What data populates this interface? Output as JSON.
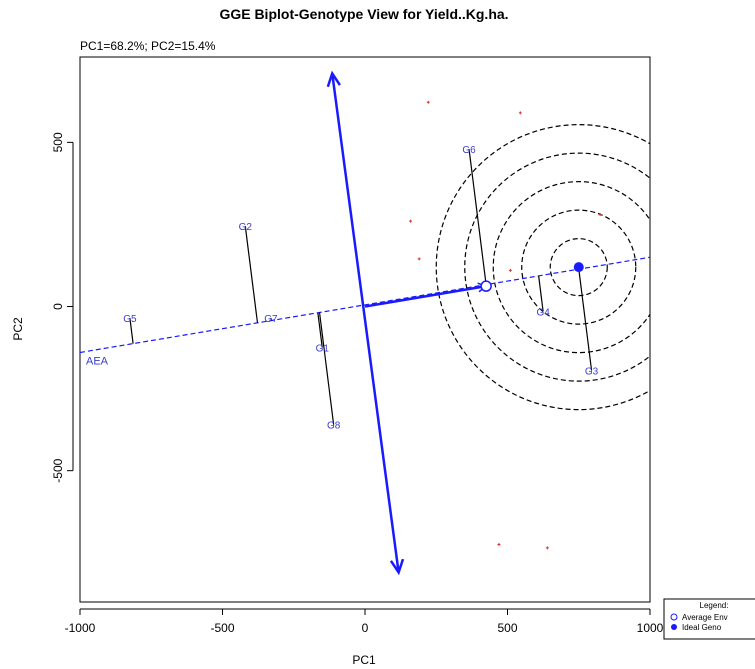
{
  "chart_data": {
    "type": "scatter",
    "title": "GGE Biplot-Genotype View for Yield..Kg.ha.",
    "subtitle": "PC1=68.2%; PC2=15.4%",
    "xlabel": "PC1",
    "ylabel": "PC2",
    "xlim": [
      -1000,
      1000
    ],
    "ylim": [
      -900,
      760
    ],
    "xticks": [
      -1000,
      -500,
      0,
      500,
      1000
    ],
    "yticks": [
      -500,
      0,
      500
    ],
    "genotypes": [
      {
        "label": "G1",
        "x": -150,
        "y": -125
      },
      {
        "label": "G2",
        "x": -420,
        "y": 245
      },
      {
        "label": "G3",
        "x": 795,
        "y": -195
      },
      {
        "label": "G4",
        "x": 625,
        "y": -15
      },
      {
        "label": "G5",
        "x": -825,
        "y": -35
      },
      {
        "label": "G6",
        "x": 365,
        "y": 480
      },
      {
        "label": "G7",
        "x": -330,
        "y": -35
      },
      {
        "label": "G8",
        "x": -110,
        "y": -360
      }
    ],
    "environments": [
      {
        "x": 222,
        "y": 622
      },
      {
        "x": 545,
        "y": 590
      },
      {
        "x": 160,
        "y": 260
      },
      {
        "x": 190,
        "y": 145
      },
      {
        "x": 825,
        "y": 280
      },
      {
        "x": 510,
        "y": 110
      },
      {
        "x": 470,
        "y": -725
      },
      {
        "x": 640,
        "y": -735
      }
    ],
    "aea_line": {
      "label": "AEA",
      "start": [
        -1000,
        -140
      ],
      "end": [
        1000,
        150
      ]
    },
    "average_environment": {
      "x": 425,
      "y": 62
    },
    "ideal_genotype": {
      "x": 750,
      "y": 120
    },
    "ideal_circle_radii": [
      100,
      200,
      300,
      400,
      500
    ],
    "perpendicular_arrow": {
      "start": [
        -115,
        710
      ],
      "end": [
        118,
        -810
      ]
    },
    "legend": {
      "title": "Legend:",
      "items": [
        {
          "label": "Average Env",
          "marker": "open-circle"
        },
        {
          "label": "Ideal Geno",
          "marker": "filled-circle"
        }
      ],
      "placement": "bottom-right"
    },
    "colors": {
      "genotype_label": "#3b3bd0",
      "env_marker": "#e03030",
      "axis_line": "#1a1aff",
      "circles": "#000000"
    }
  }
}
